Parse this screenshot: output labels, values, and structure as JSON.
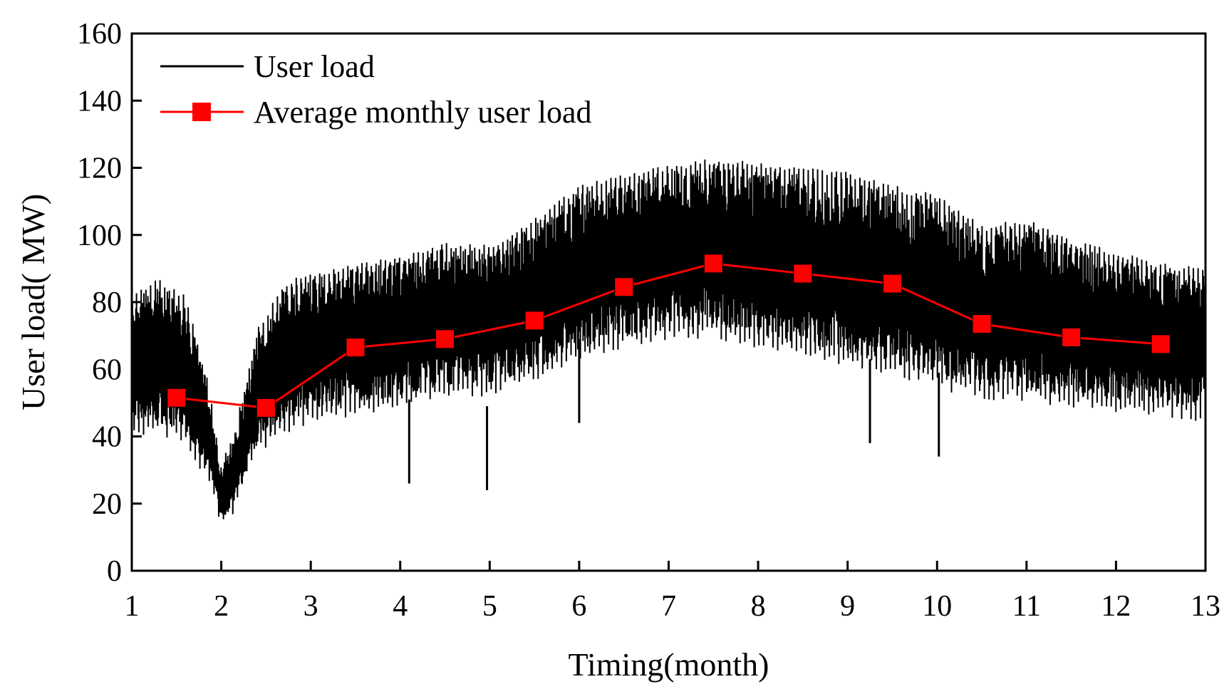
{
  "chart_data": {
    "type": "line",
    "title": "",
    "xlabel": "Timing(month)",
    "ylabel": "User load( MW)",
    "xlim": [
      1,
      13
    ],
    "ylim": [
      0,
      160
    ],
    "xticks": [
      1,
      2,
      3,
      4,
      5,
      6,
      7,
      8,
      9,
      10,
      11,
      12,
      13
    ],
    "yticks": [
      0,
      20,
      40,
      60,
      80,
      100,
      120,
      140,
      160
    ],
    "legend_position": "top-left",
    "colors": {
      "user_load": "#000000",
      "average": "#ff0000"
    },
    "series": [
      {
        "name": "User load",
        "style": "line",
        "description": "hourly load envelope",
        "months": [
          1,
          1.3,
          1.6,
          1.85,
          2.0,
          2.15,
          2.4,
          2.7,
          3,
          3.5,
          4,
          4.5,
          5,
          5.5,
          6,
          6.5,
          7,
          7.5,
          8,
          8.5,
          9,
          9.5,
          10,
          10.5,
          11,
          11.5,
          12,
          12.5,
          13
        ],
        "daily_max": [
          82,
          85,
          80,
          55,
          30,
          40,
          70,
          84,
          87,
          90,
          92,
          96,
          95,
          103,
          113,
          116,
          119,
          121,
          120,
          118,
          117,
          113,
          110,
          101,
          103,
          97,
          93,
          90,
          88
        ],
        "daily_min": [
          44,
          44,
          42,
          30,
          15,
          20,
          38,
          44,
          48,
          50,
          52,
          55,
          56,
          60,
          66,
          70,
          72,
          73,
          70,
          67,
          65,
          62,
          58,
          55,
          54,
          52,
          51,
          50,
          48
        ]
      },
      {
        "name": "Average monthly user load",
        "style": "line-marker",
        "marker": "square",
        "x": [
          1.5,
          2.5,
          3.5,
          4.5,
          5.5,
          6.5,
          7.5,
          8.5,
          9.5,
          10.5,
          11.5,
          12.5
        ],
        "values": [
          51.5,
          48.5,
          66.5,
          69,
          74.5,
          84.5,
          91.5,
          88.5,
          85.5,
          73.5,
          69.5,
          67.5
        ]
      }
    ],
    "dips": [
      {
        "x": 4.1,
        "value": 26
      },
      {
        "x": 4.97,
        "value": 24
      },
      {
        "x": 6.0,
        "value": 44
      },
      {
        "x": 9.25,
        "value": 38
      },
      {
        "x": 10.02,
        "value": 34
      }
    ]
  }
}
